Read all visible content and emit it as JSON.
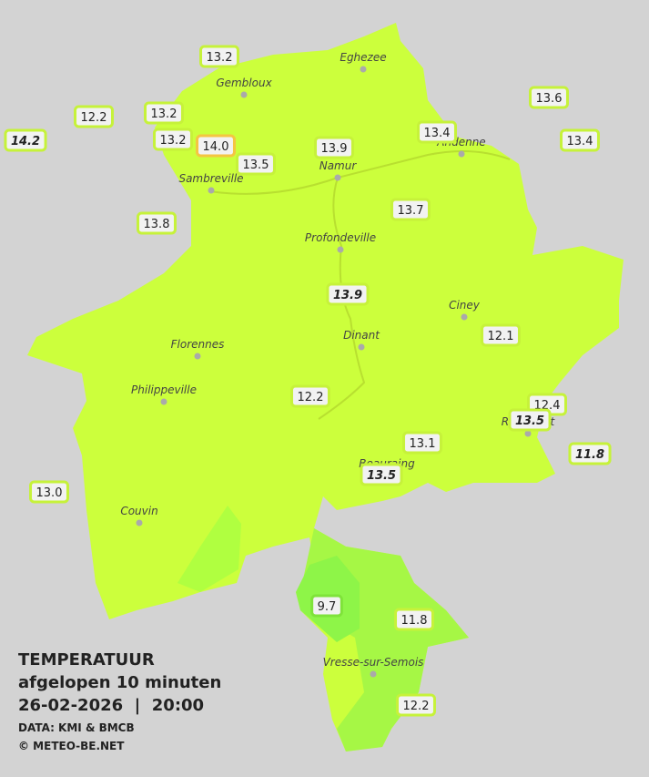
{
  "towns": [
    "Eghezee",
    "Gembloux",
    "Andenne",
    "Namur",
    "Sambreville",
    "Profondeville",
    "Ciney",
    "Dinant",
    "Florennes",
    "Philippeville",
    "Rochefort",
    "Beauraing",
    "Couvin",
    "Vresse-sur-Semois"
  ],
  "stations": [
    {
      "text": "13.2"
    },
    {
      "text": "12.2"
    },
    {
      "text": "13.2"
    },
    {
      "text": "14.2",
      "italic": true
    },
    {
      "text": "13.2"
    },
    {
      "text": "14.0"
    },
    {
      "text": "13.5"
    },
    {
      "text": "13.9"
    },
    {
      "text": "13.4"
    },
    {
      "text": "13.6"
    },
    {
      "text": "13.4"
    },
    {
      "text": "13.8"
    },
    {
      "text": "13.7"
    },
    {
      "text": "13.9",
      "italic": true
    },
    {
      "text": "12.1"
    },
    {
      "text": "12.2"
    },
    {
      "text": "12.4"
    },
    {
      "text": "13.5",
      "italic": true
    },
    {
      "text": "13.1"
    },
    {
      "text": "11.8",
      "italic": true
    },
    {
      "text": "13.5",
      "italic": true
    },
    {
      "text": "13.0"
    },
    {
      "text": "9.7"
    },
    {
      "text": "11.8"
    },
    {
      "text": "12.2"
    }
  ],
  "legend": {
    "title": "TEMPERATUUR",
    "subtitle": "afgelopen 10 minuten",
    "datetime": "26-02-2026  |  20:00",
    "source": "DATA: KMI & BMCB",
    "copyright": "© METEO-BE.NET"
  }
}
